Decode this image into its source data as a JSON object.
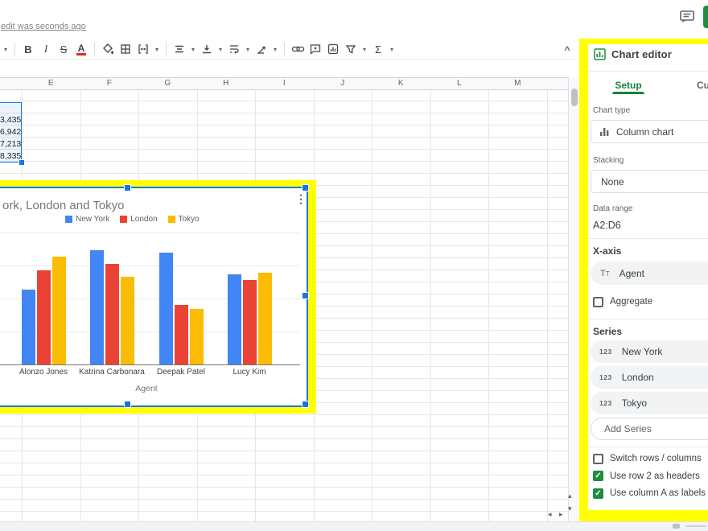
{
  "top": {
    "last_edit": "edit was seconds ago",
    "share_button_color": "#1e8e3e"
  },
  "toolbar": {
    "glyphs": {
      "bold": "B",
      "italic": "I",
      "strikethrough": "S",
      "text_color": "A",
      "functions": "Σ"
    },
    "items": [
      "more-dropdown",
      "bold",
      "italic",
      "strikethrough",
      "text-color",
      "fill-color",
      "borders",
      "merge-cells",
      "horizontal-align",
      "vertical-align",
      "text-wrap",
      "text-rotation",
      "insert-link",
      "insert-comment",
      "insert-chart",
      "create-filter",
      "functions"
    ],
    "collapse": "^"
  },
  "sheet": {
    "columns": [
      "E",
      "F",
      "G",
      "H",
      "I",
      "J",
      "K",
      "L",
      "M"
    ],
    "d_column_values": [
      "3,435",
      "6,942",
      "7,213",
      "8,335"
    ]
  },
  "chart_data": {
    "type": "bar",
    "title_visible": "ork, London and Tokyo",
    "categories": [
      "Alonzo Jones",
      "Katrina Carbonara",
      "Deepak Patel",
      "Lucy Kim"
    ],
    "series": [
      {
        "name": "New York",
        "color": "#4285F4",
        "values": [
          4650,
          7100,
          6950,
          5600
        ]
      },
      {
        "name": "London",
        "color": "#EA4335",
        "values": [
          5850,
          6250,
          3700,
          5250
        ]
      },
      {
        "name": "Tokyo",
        "color": "#FBBC04",
        "values": [
          6700,
          5450,
          3450,
          5700
        ]
      }
    ],
    "xlabel": "Agent",
    "ylabel": "",
    "ylim": [
      0,
      10000
    ],
    "gridline_step": 2000,
    "grid": true,
    "legend_position": "top",
    "menu_icon": "⋮"
  },
  "editor": {
    "title": "Chart editor",
    "tabs": [
      {
        "label": "Setup",
        "active": true
      },
      {
        "label": "Cu",
        "active": false
      }
    ],
    "chart_type": {
      "label": "Chart type",
      "value": "Column chart"
    },
    "stacking": {
      "label": "Stacking",
      "value": "None"
    },
    "data_range": {
      "label": "Data range",
      "value": "A2:D6"
    },
    "x_axis": {
      "label": "X-axis",
      "value": "Agent"
    },
    "aggregate": {
      "label": "Aggregate",
      "checked": false
    },
    "series_label": "Series",
    "series": [
      "New York",
      "London",
      "Tokyo"
    ],
    "add_series": "Add Series",
    "options": [
      {
        "label": "Switch rows / columns",
        "checked": false
      },
      {
        "label": "Use row 2 as headers",
        "checked": true
      },
      {
        "label": "Use column A as labels",
        "checked": true
      }
    ]
  },
  "colors": {
    "selection": "#1a73e8",
    "highlight": "#ffff00",
    "accent_green": "#188038"
  }
}
